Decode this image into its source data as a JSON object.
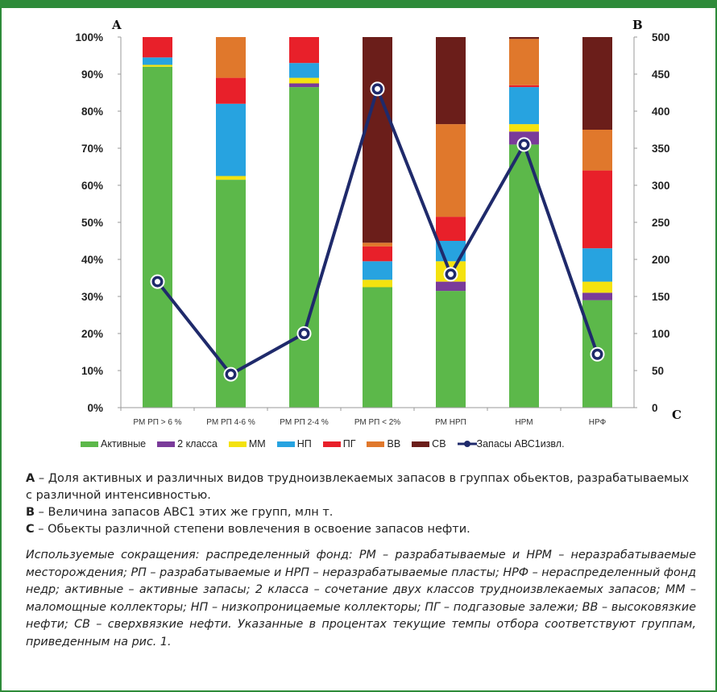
{
  "chart_data": {
    "type": "bar",
    "stacked": true,
    "categories": [
      "РМ РП > 6 %",
      "РМ РП 4-6 %",
      "РМ РП 2-4 %",
      "РМ РП < 2%",
      "РМ НРП",
      "НРМ",
      "НРФ"
    ],
    "left_axis": {
      "ticks": [
        "0%",
        "10%",
        "20%",
        "30%",
        "40%",
        "50%",
        "60%",
        "70%",
        "80%",
        "90%",
        "100%"
      ],
      "ylim": [
        0,
        100
      ],
      "marker": "A"
    },
    "right_axis": {
      "ticks": [
        "0",
        "50",
        "100",
        "150",
        "200",
        "250",
        "300",
        "350",
        "400",
        "450",
        "500"
      ],
      "ylim": [
        0,
        500
      ],
      "marker": "B"
    },
    "x_marker": "C",
    "series": [
      {
        "name": "Активные",
        "color": "#5cb84a",
        "values": [
          92,
          61.5,
          86.5,
          32.5,
          31.5,
          71,
          29
        ]
      },
      {
        "name": "2 класса",
        "color": "#7a3b9a",
        "values": [
          0,
          0,
          1,
          0,
          2.5,
          3.5,
          2
        ]
      },
      {
        "name": "ММ",
        "color": "#f4e20f",
        "values": [
          0.5,
          1,
          1.5,
          2,
          5.5,
          2,
          3
        ]
      },
      {
        "name": "НП",
        "color": "#27a3e0",
        "values": [
          2,
          19.5,
          4,
          5,
          5.5,
          10,
          9
        ]
      },
      {
        "name": "ПГ",
        "color": "#e8202a",
        "values": [
          5.5,
          7,
          7,
          4,
          6.5,
          0.5,
          21
        ]
      },
      {
        "name": "ВВ",
        "color": "#e0782c",
        "values": [
          0,
          11,
          0,
          1,
          25,
          12.5,
          11
        ]
      },
      {
        "name": "СВ",
        "color": "#6b1e1a",
        "values": [
          0,
          0,
          0,
          55.5,
          23.5,
          0.5,
          25
        ]
      }
    ],
    "line_series": {
      "name": "Запасы АВС1извл.",
      "color": "#1f2a6b",
      "axis": "right",
      "values": [
        170,
        45,
        100,
        430,
        180,
        355,
        72
      ]
    }
  },
  "caption": {
    "a_key": "A",
    "a_text": " – Доля активных и различных видов трудноизвлекаемых запасов в группах обьектов, разрабатываемых с различной интенсивностью.",
    "b_key": "B",
    "b_text": " – Величина запасов АВС1 этих же групп, млн т.",
    "c_key": "C",
    "c_text": " – Обьекты различной степени вовлечения в освоение запасов нефти."
  },
  "abbreviations": "Используемые сокращения: распределенный фонд: РМ – разрабатываемые и НРМ – неразрабатываемые месторождения; РП – разрабатываемые и НРП – неразрабатываемые пласты; НРФ – нераспределенный фонд недр; активные – активные запасы; 2 класса – сочетание двух классов трудноизвлекаемых запасов; ММ – маломощные коллекторы; НП – низкопроницаемые коллекторы; ПГ – подгазовые залежи; ВВ – высоковязкие нефти; СВ – сверхвязкие нефти. Указанные в процентах текущие темпы отбора соответствуют группам, приведенным на рис. 1."
}
